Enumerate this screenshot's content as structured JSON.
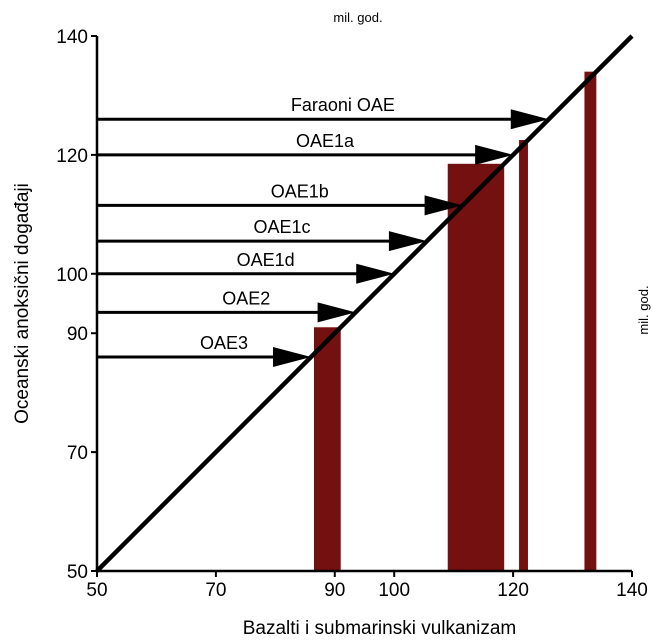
{
  "chart_data": {
    "type": "bar",
    "title": "",
    "xlabel": "Bazalti i submarinski vulkanizam",
    "ylabel": "Oceanski anoksični događaji",
    "top_unit_label": "mil. god.",
    "right_unit_label": "mil. god.",
    "xlim": [
      50,
      140
    ],
    "ylim": [
      50,
      140
    ],
    "x_ticks": [
      50,
      70,
      90,
      100,
      120,
      140
    ],
    "y_ticks": [
      50,
      70,
      90,
      100,
      120,
      140
    ],
    "grid": false,
    "legend": "none",
    "bar_color": "#731010",
    "bars": [
      {
        "x_start": 86.5,
        "x_end": 91,
        "top": 91
      },
      {
        "x_start": 109,
        "x_end": 118.5,
        "top": 118.5
      },
      {
        "x_start": 121,
        "x_end": 122.5,
        "top": 122.5
      },
      {
        "x_start": 132,
        "x_end": 134,
        "top": 134
      }
    ],
    "events": [
      {
        "name": "Faraoni OAE",
        "age": 126
      },
      {
        "name": "OAE1a",
        "age": 120
      },
      {
        "name": "OAE1b",
        "age": 111.5
      },
      {
        "name": "OAE1c",
        "age": 105.5
      },
      {
        "name": "OAE1d",
        "age": 100
      },
      {
        "name": "OAE2",
        "age": 93.5
      },
      {
        "name": "OAE3",
        "age": 86
      }
    ]
  }
}
